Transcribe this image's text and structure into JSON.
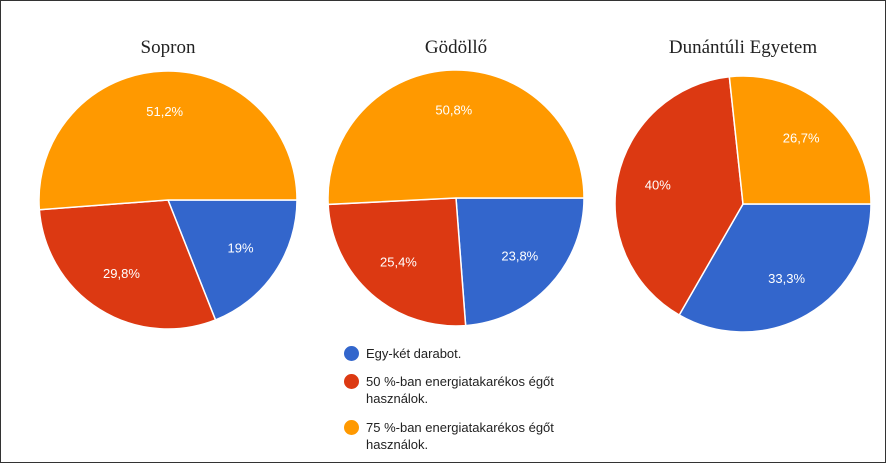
{
  "chart_data": [
    {
      "type": "pie",
      "title": "Sopron",
      "values": [
        19,
        29.8,
        51.2
      ],
      "value_labels": [
        "19%",
        "29,8%",
        "51,2%"
      ],
      "colors": [
        "#3366cc",
        "#dc3912",
        "#ff9900"
      ]
    },
    {
      "type": "pie",
      "title": "Gödöllő",
      "values": [
        23.8,
        25.4,
        50.8
      ],
      "value_labels": [
        "23,8%",
        "25,4%",
        "50,8%"
      ],
      "colors": [
        "#3366cc",
        "#dc3912",
        "#ff9900"
      ]
    },
    {
      "type": "pie",
      "title": "Dunántúli Egyetem",
      "values": [
        33.3,
        40,
        26.7
      ],
      "value_labels": [
        "33,3%",
        "40%",
        "26,7%"
      ],
      "colors": [
        "#3366cc",
        "#dc3912",
        "#ff9900"
      ]
    }
  ],
  "legend": {
    "items": [
      "Egy-két darabot.",
      "50 %-ban energiatakarékos égőt használok.",
      "75 %-ban energiatakarékos égőt használok."
    ],
    "colors": [
      "#3366cc",
      "#dc3912",
      "#ff9900"
    ]
  }
}
